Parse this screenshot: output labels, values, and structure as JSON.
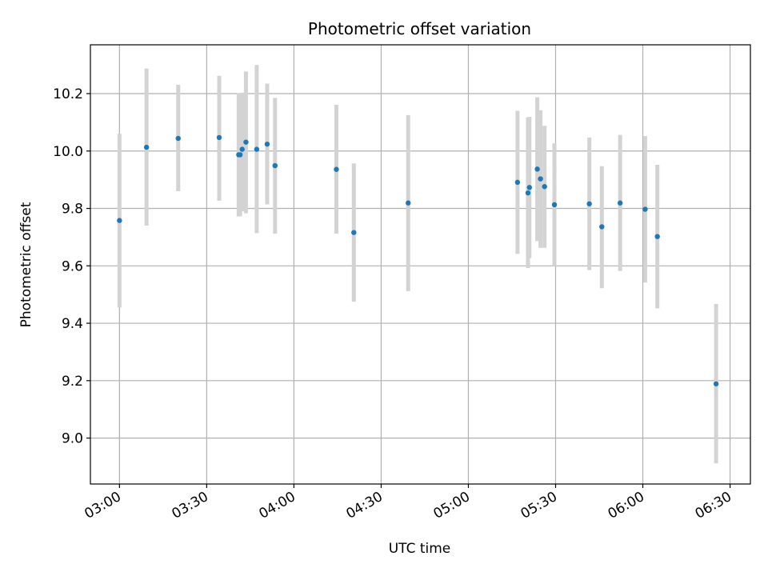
{
  "chart_data": {
    "type": "scatter",
    "title": "Photometric offset variation",
    "xlabel": "UTC time",
    "ylabel": "Photometric offset",
    "xlim_minutes": [
      -10,
      217
    ],
    "ylim": [
      8.84,
      10.37
    ],
    "grid": true,
    "x_ticks": [
      {
        "label": "03:00",
        "minutes": 0
      },
      {
        "label": "03:30",
        "minutes": 30
      },
      {
        "label": "04:00",
        "minutes": 60
      },
      {
        "label": "04:30",
        "minutes": 90
      },
      {
        "label": "05:00",
        "minutes": 120
      },
      {
        "label": "05:30",
        "minutes": 150
      },
      {
        "label": "06:00",
        "minutes": 180
      },
      {
        "label": "06:30",
        "minutes": 210
      }
    ],
    "y_ticks": [
      9.0,
      9.2,
      9.4,
      9.6,
      9.8,
      10.0,
      10.2
    ],
    "point_color": "#1f77b4",
    "errorbar_color": "#d3d3d3",
    "series": [
      {
        "name": "photometric offset",
        "points": [
          {
            "t": "03:00",
            "minutes": 0.0,
            "y": 9.758,
            "lo": 9.455,
            "hi": 10.06
          },
          {
            "t": "03:09",
            "minutes": 9.3,
            "y": 10.013,
            "lo": 9.74,
            "hi": 10.287
          },
          {
            "t": "03:20",
            "minutes": 20.2,
            "y": 10.044,
            "lo": 9.86,
            "hi": 10.231
          },
          {
            "t": "03:34",
            "minutes": 34.3,
            "y": 10.047,
            "lo": 9.827,
            "hi": 10.262
          },
          {
            "t": "03:41",
            "minutes": 41.0,
            "y": 9.987,
            "lo": 9.772,
            "hi": 10.201
          },
          {
            "t": "03:41",
            "minutes": 41.5,
            "y": 9.987,
            "lo": 9.773,
            "hi": 10.201
          },
          {
            "t": "03:42",
            "minutes": 42.2,
            "y": 10.006,
            "lo": 9.79,
            "hi": 10.203
          },
          {
            "t": "03:43",
            "minutes": 43.5,
            "y": 10.031,
            "lo": 9.783,
            "hi": 10.277
          },
          {
            "t": "03:47",
            "minutes": 47.2,
            "y": 10.006,
            "lo": 9.714,
            "hi": 10.3
          },
          {
            "t": "03:51",
            "minutes": 50.8,
            "y": 10.024,
            "lo": 9.814,
            "hi": 10.235
          },
          {
            "t": "03:54",
            "minutes": 53.5,
            "y": 9.949,
            "lo": 9.712,
            "hi": 10.185
          },
          {
            "t": "04:15",
            "minutes": 74.6,
            "y": 9.936,
            "lo": 9.712,
            "hi": 10.161
          },
          {
            "t": "04:21",
            "minutes": 80.6,
            "y": 9.716,
            "lo": 9.475,
            "hi": 9.957
          },
          {
            "t": "04:40",
            "minutes": 99.3,
            "y": 9.819,
            "lo": 9.512,
            "hi": 10.125
          },
          {
            "t": "05:17",
            "minutes": 136.9,
            "y": 9.891,
            "lo": 9.642,
            "hi": 10.14
          },
          {
            "t": "05:21",
            "minutes": 140.5,
            "y": 9.854,
            "lo": 9.592,
            "hi": 10.117
          },
          {
            "t": "05:21",
            "minutes": 141.0,
            "y": 9.873,
            "lo": 9.627,
            "hi": 10.119
          },
          {
            "t": "05:24",
            "minutes": 143.7,
            "y": 9.937,
            "lo": 9.686,
            "hi": 10.187
          },
          {
            "t": "05:25",
            "minutes": 144.8,
            "y": 9.903,
            "lo": 9.663,
            "hi": 10.142
          },
          {
            "t": "05:26",
            "minutes": 146.2,
            "y": 9.876,
            "lo": 9.663,
            "hi": 10.088
          },
          {
            "t": "05:30",
            "minutes": 149.6,
            "y": 9.813,
            "lo": 9.599,
            "hi": 10.027
          },
          {
            "t": "05:42",
            "minutes": 161.6,
            "y": 9.816,
            "lo": 9.585,
            "hi": 10.047
          },
          {
            "t": "05:46",
            "minutes": 165.9,
            "y": 9.736,
            "lo": 9.522,
            "hi": 9.947
          },
          {
            "t": "05:52",
            "minutes": 172.2,
            "y": 9.819,
            "lo": 9.582,
            "hi": 10.056
          },
          {
            "t": "06:01",
            "minutes": 180.8,
            "y": 9.797,
            "lo": 9.542,
            "hi": 10.052
          },
          {
            "t": "06:05",
            "minutes": 185.0,
            "y": 9.702,
            "lo": 9.452,
            "hi": 9.952
          },
          {
            "t": "06:25",
            "minutes": 205.2,
            "y": 9.189,
            "lo": 8.912,
            "hi": 9.467
          }
        ]
      }
    ]
  }
}
